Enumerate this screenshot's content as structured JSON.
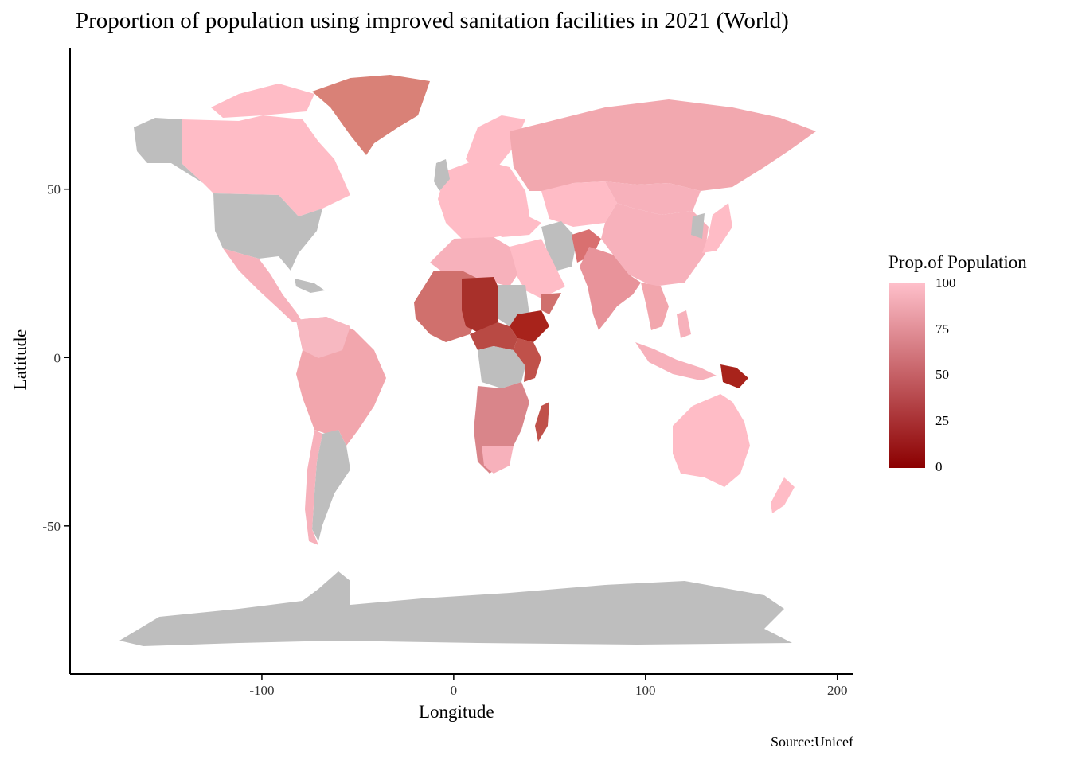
{
  "chart_data": {
    "type": "choropleth",
    "title": "Proportion of population using improved sanitation facilities in 2021 (World)",
    "xlabel": "Longitude",
    "ylabel": "Latitude",
    "caption": "Source:Unicef",
    "xlim": [
      -200,
      208
    ],
    "ylim": [
      -94,
      92
    ],
    "x_ticks": [
      -100,
      0,
      100,
      200
    ],
    "y_ticks": [
      -50,
      0,
      50
    ],
    "legend": {
      "title": "Prop.of Population",
      "ticks": [
        100,
        75,
        50,
        25,
        0
      ],
      "range": [
        0,
        100
      ],
      "low_color": "#8b0000",
      "high_color": "#ffc0cb",
      "na_color": "#bebebe"
    },
    "regions": [
      {
        "name": "Greenland",
        "value": 60
      },
      {
        "name": "Canada",
        "value": 99
      },
      {
        "name": "Russia",
        "value": 90
      },
      {
        "name": "China",
        "value": 94
      },
      {
        "name": "India",
        "value": 78
      },
      {
        "name": "Brazil",
        "value": 85
      },
      {
        "name": "Australia",
        "value": 100
      },
      {
        "name": "Ethiopia",
        "value": 10
      },
      {
        "name": "Chad",
        "value": 15
      },
      {
        "name": "Papua New Guinea",
        "value": 20
      },
      {
        "name": "Madagascar",
        "value": 40
      },
      {
        "name": "United States",
        "value": null
      },
      {
        "name": "Antarctica",
        "value": null
      },
      {
        "name": "Argentina",
        "value": null
      },
      {
        "name": "DR Congo",
        "value": null
      },
      {
        "name": "Sudan",
        "value": null
      },
      {
        "name": "Iran",
        "value": null
      }
    ]
  }
}
